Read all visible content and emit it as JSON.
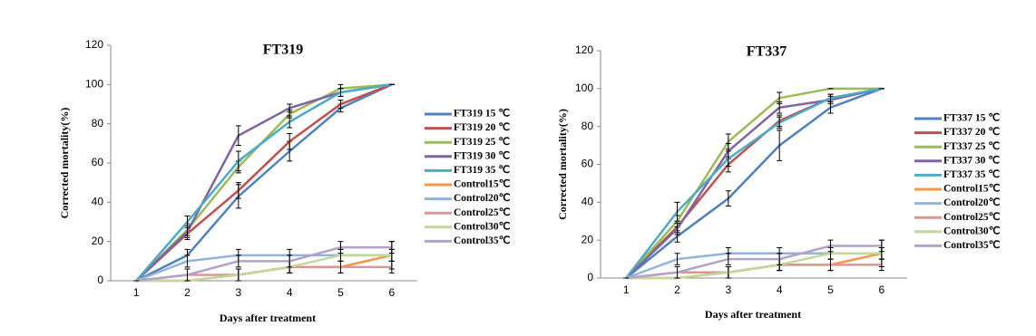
{
  "chart_data": [
    {
      "type": "line",
      "title": "FT319",
      "x_label": "Days after treatment",
      "y_label": "Corrected mortality(%)",
      "categories": [
        "1",
        "2",
        "3",
        "4",
        "5",
        "6"
      ],
      "ylim": [
        0,
        120
      ],
      "yticks": [
        0,
        20,
        40,
        60,
        80,
        100,
        120
      ],
      "series": [
        {
          "name": "FT319 15 ℃",
          "color": "#4f81bd",
          "values": [
            0,
            13,
            43,
            66,
            88,
            100
          ],
          "errors": [
            0,
            3,
            6,
            5,
            2,
            0
          ]
        },
        {
          "name": "FT319 20 ℃",
          "color": "#c0504d",
          "values": [
            0,
            24,
            46,
            71,
            90,
            100
          ],
          "errors": [
            0,
            3,
            4,
            4,
            2,
            0
          ]
        },
        {
          "name": "FT319 25 ℃",
          "color": "#9bbb59",
          "values": [
            0,
            26,
            58,
            85,
            98,
            100
          ],
          "errors": [
            0,
            3,
            3,
            2,
            2,
            0
          ]
        },
        {
          "name": "FT319 30 ℃",
          "color": "#8064a2",
          "values": [
            0,
            25,
            74,
            88,
            96,
            100
          ],
          "errors": [
            0,
            3,
            5,
            2,
            2,
            0
          ]
        },
        {
          "name": "FT319 35 ℃",
          "color": "#4bacc6",
          "values": [
            0,
            30,
            61,
            81,
            96,
            100
          ],
          "errors": [
            0,
            3,
            5,
            3,
            2,
            0
          ]
        },
        {
          "name": "Control15℃",
          "color": "#f79646",
          "values": [
            0,
            0,
            3,
            7,
            7,
            13
          ],
          "errors": [
            0,
            0,
            3,
            3,
            3,
            7
          ]
        },
        {
          "name": "Control20℃",
          "color": "#95b3d7",
          "values": [
            0,
            10,
            13,
            13,
            13,
            13
          ],
          "errors": [
            0,
            3,
            3,
            3,
            3,
            3
          ]
        },
        {
          "name": "Control25℃",
          "color": "#d99694",
          "values": [
            0,
            3,
            3,
            7,
            7,
            7
          ],
          "errors": [
            0,
            3,
            3,
            3,
            3,
            3
          ]
        },
        {
          "name": "Control30℃",
          "color": "#c3d69b",
          "values": [
            0,
            0,
            3,
            7,
            13,
            13
          ],
          "errors": [
            0,
            0,
            3,
            3,
            3,
            3
          ]
        },
        {
          "name": "Control35℃",
          "color": "#b3a2c7",
          "values": [
            0,
            3,
            10,
            10,
            17,
            17
          ],
          "errors": [
            0,
            3,
            3,
            3,
            3,
            3
          ]
        }
      ]
    },
    {
      "type": "line",
      "title": "FT337",
      "x_label": "Days after treatment",
      "y_label": "Corrected mortality(%)",
      "categories": [
        "1",
        "2",
        "3",
        "4",
        "5",
        "6"
      ],
      "ylim": [
        0,
        120
      ],
      "yticks": [
        0,
        20,
        40,
        60,
        80,
        100,
        120
      ],
      "series": [
        {
          "name": "FT337 15 ℃",
          "color": "#4f81bd",
          "values": [
            0,
            22,
            42,
            70,
            90,
            100
          ],
          "errors": [
            0,
            3,
            4,
            8,
            3,
            0
          ]
        },
        {
          "name": "FT337 20 ℃",
          "color": "#c0504d",
          "values": [
            0,
            27,
            60,
            83,
            95,
            100
          ],
          "errors": [
            0,
            3,
            4,
            3,
            2,
            0
          ]
        },
        {
          "name": "FT337 25 ℃",
          "color": "#9bbb59",
          "values": [
            0,
            30,
            72,
            95,
            100,
            100
          ],
          "errors": [
            0,
            3,
            4,
            3,
            0,
            0
          ]
        },
        {
          "name": "FT337 30 ℃",
          "color": "#8064a2",
          "values": [
            0,
            26,
            67,
            90,
            94,
            100
          ],
          "errors": [
            0,
            3,
            4,
            3,
            2,
            0
          ]
        },
        {
          "name": "FT337 35 ℃",
          "color": "#4bacc6",
          "values": [
            0,
            35,
            63,
            82,
            95,
            100
          ],
          "errors": [
            0,
            5,
            4,
            3,
            2,
            0
          ]
        },
        {
          "name": "Control15℃",
          "color": "#f79646",
          "values": [
            0,
            0,
            3,
            7,
            7,
            13
          ],
          "errors": [
            0,
            0,
            3,
            3,
            3,
            7
          ]
        },
        {
          "name": "Control20℃",
          "color": "#95b3d7",
          "values": [
            0,
            10,
            13,
            13,
            13,
            13
          ],
          "errors": [
            0,
            3,
            3,
            3,
            3,
            3
          ]
        },
        {
          "name": "Control25℃",
          "color": "#d99694",
          "values": [
            0,
            3,
            3,
            7,
            7,
            7
          ],
          "errors": [
            0,
            3,
            3,
            3,
            3,
            3
          ]
        },
        {
          "name": "Control30℃",
          "color": "#c3d69b",
          "values": [
            0,
            0,
            3,
            7,
            13,
            13
          ],
          "errors": [
            0,
            0,
            3,
            3,
            3,
            3
          ]
        },
        {
          "name": "Control35℃",
          "color": "#b3a2c7",
          "values": [
            0,
            3,
            10,
            10,
            17,
            17
          ],
          "errors": [
            0,
            3,
            3,
            3,
            3,
            3
          ]
        }
      ]
    }
  ]
}
